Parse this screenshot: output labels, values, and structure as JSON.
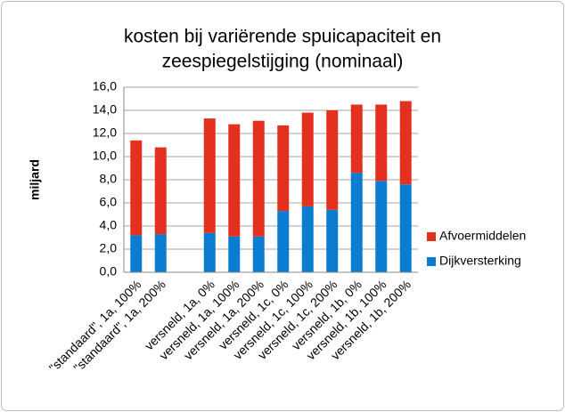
{
  "chart_data": {
    "type": "stacked_bar",
    "title": [
      "kosten bij variërende spuicapaciteit en",
      "zeespiegelstijging (nominaal)"
    ],
    "y_label": "miljard",
    "categories": [
      "\"standaard\", 1a, 100%",
      "\"standaard\", 1a, 200%",
      null,
      "versneld, 1a, 0%",
      "versneld, 1a, 100%",
      "versneld, 1a, 200%",
      "versneld, 1c, 0%",
      "versneld, 1c, 100%",
      "versneld, 1c, 200%",
      "versneld, 1b, 0%",
      "versneld, 1b, 100%",
      "versneld, 1b, 200%"
    ],
    "series": [
      {
        "name": "Dijkversterking",
        "color": "#0a7dd0",
        "values": [
          3.2,
          3.3,
          null,
          3.4,
          3.1,
          3.1,
          5.3,
          5.7,
          5.4,
          8.6,
          7.9,
          7.6
        ]
      },
      {
        "name": "Afvoermiddelen",
        "color": "#e3301f",
        "values": [
          8.2,
          7.5,
          null,
          9.9,
          9.7,
          10.0,
          7.4,
          8.1,
          8.6,
          5.9,
          6.6,
          7.2
        ]
      }
    ],
    "ylim": [
      0,
      16
    ],
    "yticks": [
      {
        "value": 0,
        "label": "0,0"
      },
      {
        "value": 2,
        "label": "2,0"
      },
      {
        "value": 4,
        "label": "4,0"
      },
      {
        "value": 6,
        "label": "6,0"
      },
      {
        "value": 8,
        "label": "8,0"
      },
      {
        "value": 10,
        "label": "10,0"
      },
      {
        "value": 12,
        "label": "12,0"
      },
      {
        "value": 14,
        "label": "14,0"
      },
      {
        "value": 16,
        "label": "16,0"
      }
    ],
    "grid": true,
    "legend": "right"
  }
}
